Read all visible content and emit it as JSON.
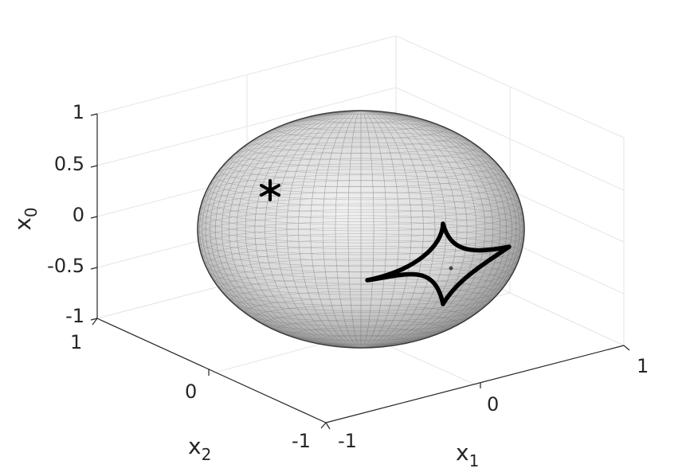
{
  "chart_data": {
    "type": "scatter",
    "title": "",
    "xlabel": "x",
    "xlabel_sub": "1",
    "ylabel": "x",
    "ylabel_sub": "2",
    "zlabel": "x",
    "zlabel_sub": "0",
    "xlim": [
      -1,
      1
    ],
    "ylim": [
      -1,
      1
    ],
    "zlim": [
      -1,
      1
    ],
    "grid": true,
    "x_ticks": [
      "-1",
      "0",
      "1"
    ],
    "y_ticks": [
      "-1",
      "0",
      "1"
    ],
    "z_ticks": [
      "-1",
      "-0.5",
      "0",
      "0.5",
      "1"
    ],
    "surface": "unit sphere (wireframe mesh)",
    "marker": {
      "symbol": "asterisk",
      "x": -0.6,
      "y": 0.7,
      "z": 0.35
    },
    "astroid_curve": {
      "description": "astroid-shaped closed curve on the sphere surface",
      "center": [
        0.95,
        0.0,
        -0.3
      ]
    },
    "colors": {
      "mesh": "#000000",
      "curve": "#000000",
      "grid": "#e6e6e6",
      "axis": "#262626"
    }
  }
}
